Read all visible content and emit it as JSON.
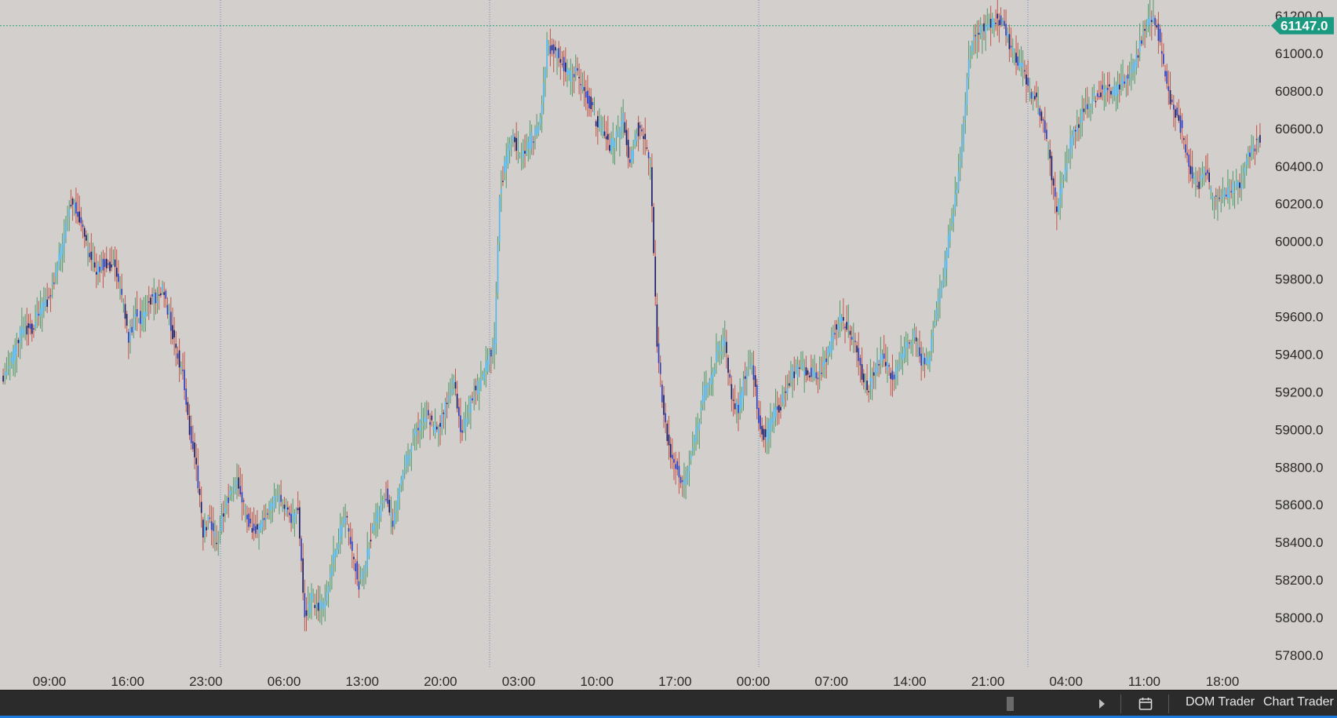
{
  "chart_data": {
    "type": "candlestick",
    "title": "",
    "xlabel": "",
    "ylabel": "",
    "ylim": [
      57690,
      61360
    ],
    "y_ticks": [
      "57800.0",
      "58000.0",
      "58200.0",
      "58400.0",
      "58600.0",
      "58800.0",
      "59000.0",
      "59200.0",
      "59400.0",
      "59600.0",
      "59800.0",
      "60000.0",
      "60200.0",
      "60400.0",
      "60600.0",
      "60800.0",
      "61000.0",
      "61200.0"
    ],
    "x_ticks": [
      "09:00",
      "16:00",
      "23:00",
      "06:00",
      "13:00",
      "20:00",
      "03:00",
      "10:00",
      "17:00",
      "00:00",
      "07:00",
      "14:00",
      "21:00",
      "04:00",
      "11:00",
      "18:00"
    ],
    "current_price": 61147,
    "current_price_label": "61147.0",
    "grid": false,
    "session_breaks": 4,
    "colors": {
      "background": "#d3cfcc",
      "up_body": "#4fb8f2",
      "down_body": "#1a1a66",
      "down_body_alt": "#2d3fc0",
      "wick_up": "#4f9a6a",
      "wick_down": "#c2564a",
      "price_line": "#27a07a",
      "price_label_bg": "#1a9a80",
      "session_line": "#6f86c0"
    },
    "anchors": [
      [
        0,
        59290
      ],
      [
        5,
        59380
      ],
      [
        12,
        59540
      ],
      [
        18,
        59540
      ],
      [
        22,
        59640
      ],
      [
        26,
        59680
      ],
      [
        30,
        59800
      ],
      [
        34,
        59950
      ],
      [
        40,
        60220
      ],
      [
        46,
        60080
      ],
      [
        50,
        59950
      ],
      [
        54,
        59850
      ],
      [
        58,
        59880
      ],
      [
        62,
        59870
      ],
      [
        66,
        59870
      ],
      [
        70,
        59700
      ],
      [
        74,
        59480
      ],
      [
        78,
        59620
      ],
      [
        82,
        59580
      ],
      [
        86,
        59680
      ],
      [
        90,
        59700
      ],
      [
        94,
        59740
      ],
      [
        98,
        59600
      ],
      [
        102,
        59420
      ],
      [
        106,
        59300
      ],
      [
        110,
        59000
      ],
      [
        114,
        58800
      ],
      [
        118,
        58450
      ],
      [
        122,
        58520
      ],
      [
        126,
        58400
      ],
      [
        130,
        58560
      ],
      [
        134,
        58650
      ],
      [
        138,
        58720
      ],
      [
        142,
        58600
      ],
      [
        146,
        58480
      ],
      [
        150,
        58460
      ],
      [
        154,
        58520
      ],
      [
        158,
        58600
      ],
      [
        162,
        58640
      ],
      [
        166,
        58580
      ],
      [
        170,
        58520
      ],
      [
        174,
        58560
      ],
      [
        178,
        58010
      ],
      [
        182,
        58100
      ],
      [
        186,
        58050
      ],
      [
        190,
        58080
      ],
      [
        194,
        58300
      ],
      [
        198,
        58420
      ],
      [
        202,
        58560
      ],
      [
        206,
        58350
      ],
      [
        210,
        58180
      ],
      [
        214,
        58300
      ],
      [
        218,
        58480
      ],
      [
        222,
        58560
      ],
      [
        226,
        58660
      ],
      [
        230,
        58480
      ],
      [
        234,
        58700
      ],
      [
        238,
        58840
      ],
      [
        242,
        58960
      ],
      [
        246,
        59020
      ],
      [
        250,
        59080
      ],
      [
        254,
        59000
      ],
      [
        258,
        59020
      ],
      [
        262,
        59160
      ],
      [
        266,
        59260
      ],
      [
        270,
        58980
      ],
      [
        274,
        59080
      ],
      [
        278,
        59200
      ],
      [
        282,
        59250
      ],
      [
        286,
        59370
      ],
      [
        290,
        59460
      ],
      [
        293,
        60250
      ],
      [
        297,
        60440
      ],
      [
        301,
        60560
      ],
      [
        305,
        60450
      ],
      [
        309,
        60500
      ],
      [
        313,
        60560
      ],
      [
        317,
        60640
      ],
      [
        321,
        61040
      ],
      [
        325,
        61020
      ],
      [
        330,
        60960
      ],
      [
        334,
        60880
      ],
      [
        338,
        60900
      ],
      [
        342,
        60820
      ],
      [
        346,
        60740
      ],
      [
        350,
        60640
      ],
      [
        354,
        60580
      ],
      [
        358,
        60500
      ],
      [
        362,
        60560
      ],
      [
        366,
        60650
      ],
      [
        370,
        60400
      ],
      [
        374,
        60600
      ],
      [
        378,
        60550
      ],
      [
        382,
        60400
      ],
      [
        386,
        59460
      ],
      [
        390,
        59060
      ],
      [
        394,
        58860
      ],
      [
        398,
        58780
      ],
      [
        402,
        58720
      ],
      [
        406,
        58880
      ],
      [
        410,
        59020
      ],
      [
        414,
        59200
      ],
      [
        418,
        59280
      ],
      [
        422,
        59420
      ],
      [
        426,
        59460
      ],
      [
        430,
        59180
      ],
      [
        434,
        59100
      ],
      [
        438,
        59300
      ],
      [
        442,
        59350
      ],
      [
        446,
        59060
      ],
      [
        450,
        58950
      ],
      [
        454,
        59080
      ],
      [
        458,
        59100
      ],
      [
        462,
        59220
      ],
      [
        466,
        59300
      ],
      [
        470,
        59320
      ],
      [
        474,
        59320
      ],
      [
        478,
        59300
      ],
      [
        482,
        59300
      ],
      [
        486,
        59380
      ],
      [
        490,
        59500
      ],
      [
        494,
        59600
      ],
      [
        498,
        59560
      ],
      [
        502,
        59480
      ],
      [
        506,
        59320
      ],
      [
        510,
        59200
      ],
      [
        514,
        59300
      ],
      [
        518,
        59400
      ],
      [
        522,
        59320
      ],
      [
        526,
        59280
      ],
      [
        530,
        59400
      ],
      [
        534,
        59450
      ],
      [
        538,
        59500
      ],
      [
        542,
        59360
      ],
      [
        546,
        59360
      ],
      [
        550,
        59600
      ],
      [
        554,
        59750
      ],
      [
        558,
        60000
      ],
      [
        562,
        60220
      ],
      [
        566,
        60520
      ],
      [
        570,
        61000
      ],
      [
        574,
        61100
      ],
      [
        578,
        61130
      ],
      [
        582,
        61150
      ],
      [
        586,
        61180
      ],
      [
        590,
        61160
      ],
      [
        594,
        61050
      ],
      [
        598,
        60950
      ],
      [
        602,
        60920
      ],
      [
        606,
        60800
      ],
      [
        610,
        60750
      ],
      [
        614,
        60650
      ],
      [
        618,
        60420
      ],
      [
        622,
        60150
      ],
      [
        626,
        60350
      ],
      [
        630,
        60530
      ],
      [
        634,
        60600
      ],
      [
        638,
        60700
      ],
      [
        642,
        60750
      ],
      [
        646,
        60780
      ],
      [
        650,
        60820
      ],
      [
        654,
        60780
      ],
      [
        658,
        60820
      ],
      [
        662,
        60850
      ],
      [
        666,
        60900
      ],
      [
        670,
        61000
      ],
      [
        674,
        61150
      ],
      [
        678,
        61200
      ],
      [
        682,
        61100
      ],
      [
        686,
        60880
      ],
      [
        690,
        60720
      ],
      [
        694,
        60650
      ],
      [
        698,
        60500
      ],
      [
        702,
        60350
      ],
      [
        706,
        60300
      ],
      [
        710,
        60380
      ],
      [
        714,
        60220
      ],
      [
        718,
        60200
      ],
      [
        722,
        60260
      ],
      [
        726,
        60280
      ],
      [
        730,
        60300
      ],
      [
        734,
        60440
      ],
      [
        738,
        60500
      ],
      [
        742,
        60550
      ]
    ]
  },
  "bottom_bar": {
    "dom_trader_label": "DOM Trader",
    "chart_trader_label": "Chart Trader"
  }
}
